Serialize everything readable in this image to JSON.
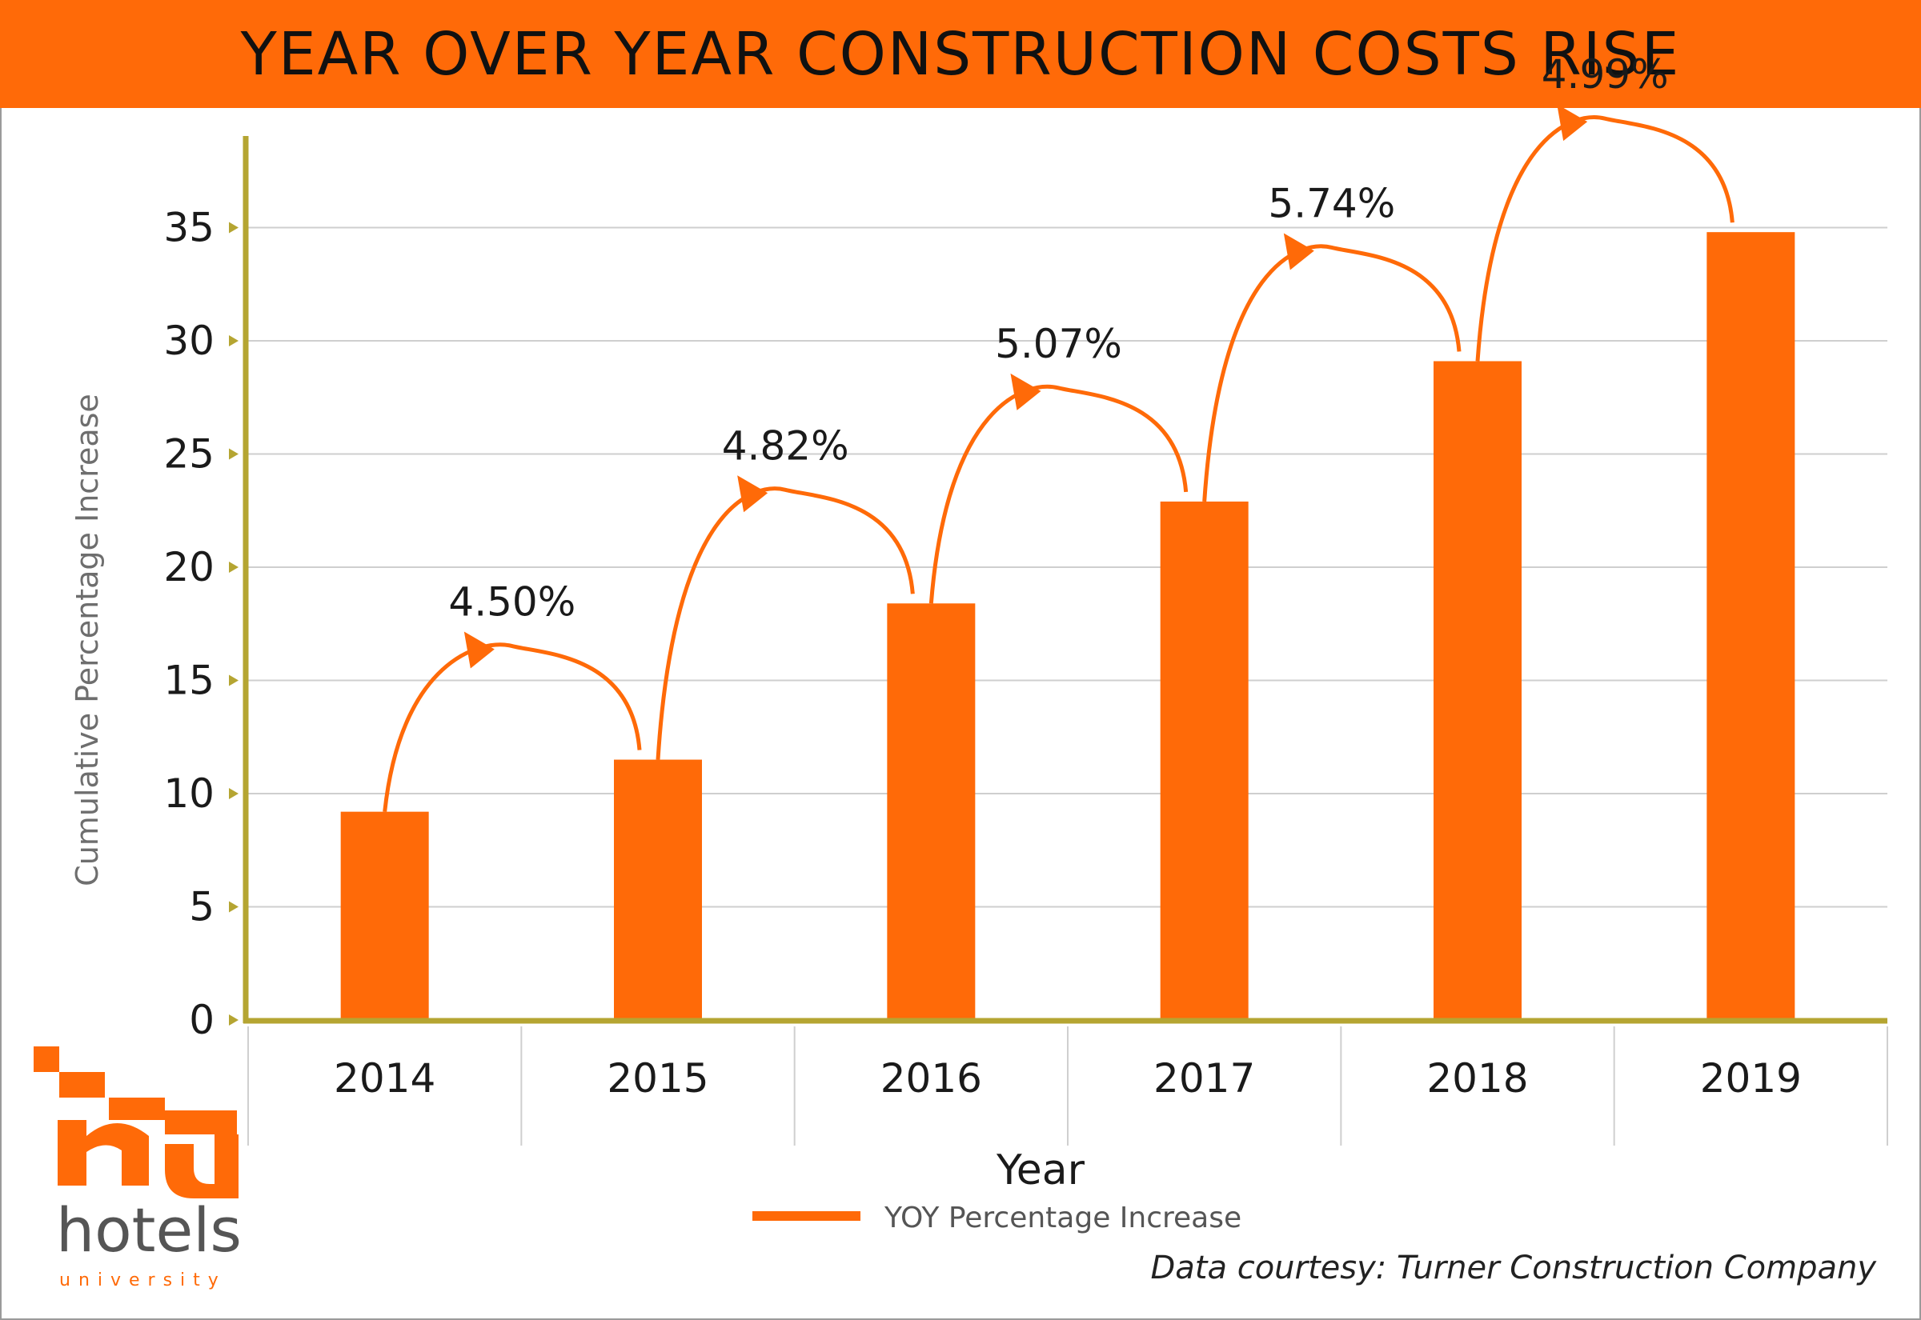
{
  "header": {
    "title": "YEAR OVER YEAR CONSTRUCTION COSTS RISE"
  },
  "source": "Data courtesy: Turner Construction Company",
  "logo": {
    "word": "hotels",
    "sub": "university"
  },
  "colors": {
    "bar": "#ff6a08",
    "axis": "#b5a532",
    "grid": "#cfcfcf",
    "header": "#ff6a08"
  },
  "chart_data": {
    "type": "bar",
    "categories": [
      "2014",
      "2015",
      "2016",
      "2017",
      "2018",
      "2019"
    ],
    "values": [
      9.2,
      11.5,
      18.4,
      22.9,
      29.1,
      34.8
    ],
    "xlabel": "Year",
    "ylabel": "Cumulative Percentage Increase",
    "ylim": [
      0,
      38
    ],
    "yticks": [
      0,
      5,
      10,
      15,
      20,
      25,
      30,
      35
    ],
    "grid": true,
    "legend": {
      "label": "YOY Percentage Increase",
      "placement": "bottom-center"
    },
    "annotations": [
      {
        "from": "2014",
        "to": "2015",
        "label": "4.50%"
      },
      {
        "from": "2015",
        "to": "2016",
        "label": "4.82%"
      },
      {
        "from": "2016",
        "to": "2017",
        "label": "5.07%"
      },
      {
        "from": "2017",
        "to": "2018",
        "label": "5.74%"
      },
      {
        "from": "2018",
        "to": "2019",
        "label": "4.99%"
      }
    ]
  }
}
